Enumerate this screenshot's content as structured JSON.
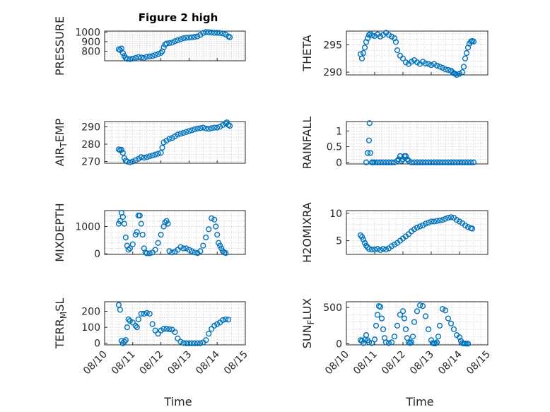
{
  "figure": {
    "title": "Figure 2 high",
    "marker_color": "#0072BD",
    "time_ticks": [
      "08/10",
      "08/11",
      "08/12",
      "08/13",
      "08/14",
      "08/15"
    ]
  },
  "chart_data": [
    {
      "type": "scatter",
      "ylabel": "PRESSURE",
      "xlim": [
        10.0,
        15.0
      ],
      "ylim": [
        700,
        1010
      ],
      "yticks": [
        800,
        900,
        1000
      ],
      "grid": true,
      "x": [
        10.5,
        10.55,
        10.6,
        10.65,
        10.7,
        10.75,
        10.8,
        10.9,
        11.0,
        11.1,
        11.2,
        11.3,
        11.4,
        11.5,
        11.6,
        11.7,
        11.8,
        11.9,
        12.0,
        12.05,
        12.1,
        12.15,
        12.2,
        12.3,
        12.4,
        12.5,
        12.6,
        12.7,
        12.8,
        12.9,
        13.0,
        13.1,
        13.2,
        13.3,
        13.4,
        13.5,
        13.6,
        13.7,
        13.8,
        13.9,
        14.0,
        14.1,
        14.2,
        14.3,
        14.4,
        14.45
      ],
      "y": [
        820,
        812,
        828,
        780,
        750,
        730,
        720,
        718,
        722,
        730,
        738,
        735,
        730,
        742,
        745,
        750,
        760,
        770,
        782,
        800,
        840,
        870,
        880,
        885,
        890,
        905,
        915,
        925,
        935,
        940,
        942,
        945,
        950,
        955,
        970,
        990,
        1000,
        998,
        995,
        992,
        993,
        990,
        985,
        975,
        955,
        945
      ]
    },
    {
      "type": "scatter",
      "ylabel": "THETA",
      "xlim": [
        10.0,
        15.0
      ],
      "ylim": [
        289.5,
        297.5
      ],
      "yticks": [
        290,
        295
      ],
      "grid": true,
      "x": [
        10.5,
        10.55,
        10.6,
        10.65,
        10.7,
        10.75,
        10.8,
        10.85,
        10.9,
        11.0,
        11.1,
        11.2,
        11.3,
        11.4,
        11.5,
        11.6,
        11.7,
        11.75,
        11.8,
        11.9,
        12.0,
        12.1,
        12.2,
        12.3,
        12.4,
        12.5,
        12.6,
        12.7,
        12.8,
        12.9,
        13.0,
        13.1,
        13.2,
        13.3,
        13.4,
        13.5,
        13.6,
        13.7,
        13.75,
        13.8,
        13.85,
        13.9,
        14.0,
        14.1,
        14.15,
        14.2,
        14.25,
        14.3,
        14.35,
        14.4,
        14.45,
        14.5
      ],
      "y": [
        293.3,
        292.5,
        293.5,
        294.5,
        295.5,
        296.2,
        296.8,
        297.0,
        296.7,
        296.6,
        296.9,
        296.5,
        296.8,
        297.2,
        296.8,
        296.5,
        296.2,
        295.5,
        294.0,
        293.0,
        292.5,
        291.8,
        291.5,
        291.9,
        292.2,
        291.8,
        291.5,
        291.9,
        291.6,
        291.5,
        291.3,
        291.5,
        291.2,
        291.0,
        290.8,
        290.5,
        290.4,
        290.3,
        290.0,
        289.8,
        289.7,
        289.5,
        289.7,
        290.0,
        291.0,
        292.5,
        293.5,
        294.5,
        295.2,
        295.6,
        295.7,
        295.6
      ]
    },
    {
      "type": "scatter",
      "ylabel": "AIR_TEMP",
      "xlim": [
        10.0,
        15.0
      ],
      "ylim": [
        269,
        293
      ],
      "yticks": [
        270,
        280,
        290
      ],
      "grid": true,
      "x": [
        10.5,
        10.55,
        10.6,
        10.65,
        10.7,
        10.75,
        10.8,
        10.9,
        11.0,
        11.1,
        11.2,
        11.3,
        11.4,
        11.5,
        11.6,
        11.7,
        11.8,
        11.9,
        12.0,
        12.05,
        12.1,
        12.2,
        12.3,
        12.4,
        12.5,
        12.6,
        12.7,
        12.8,
        12.9,
        13.0,
        13.1,
        13.2,
        13.3,
        13.4,
        13.5,
        13.6,
        13.7,
        13.8,
        13.9,
        14.0,
        14.1,
        14.2,
        14.3,
        14.35,
        14.4,
        14.45
      ],
      "y": [
        277,
        276.5,
        276.8,
        275,
        272,
        270.5,
        270,
        269.5,
        270,
        270.8,
        271.5,
        272.5,
        272.2,
        272.5,
        273,
        273.5,
        274,
        274.5,
        275,
        278,
        281,
        282,
        283,
        283.5,
        284.5,
        285.5,
        286,
        286.5,
        287,
        287.5,
        288,
        288.5,
        289,
        289.2,
        289.5,
        289,
        288.8,
        289.2,
        289.5,
        289.5,
        290,
        291,
        292,
        292.5,
        291,
        290.5
      ]
    },
    {
      "type": "scatter",
      "ylabel": "RAINFALL",
      "xlim": [
        10.0,
        15.0
      ],
      "ylim": [
        -0.05,
        1.3
      ],
      "yticks": [
        0,
        0.5,
        1
      ],
      "grid": true,
      "x": [
        10.7,
        10.75,
        10.8,
        10.82,
        10.85,
        10.9,
        10.95,
        11.0,
        11.1,
        11.2,
        11.3,
        11.4,
        11.5,
        11.6,
        11.7,
        11.8,
        11.85,
        11.9,
        11.95,
        12.0,
        12.05,
        12.1,
        12.15,
        12.2,
        12.3,
        12.4,
        12.5,
        12.6,
        12.7,
        12.8,
        12.9,
        13.0,
        13.1,
        13.2,
        13.3,
        13.4,
        13.5,
        13.6,
        13.7,
        13.8,
        13.9,
        14.0,
        14.1,
        14.2,
        14.3,
        14.4,
        14.5
      ],
      "y": [
        0,
        0.3,
        0.7,
        1.25,
        0.3,
        0,
        0,
        0,
        0,
        0,
        0,
        0,
        0,
        0,
        0,
        0.05,
        0.1,
        0.2,
        0.05,
        0.1,
        0.2,
        0.2,
        0.1,
        0.05,
        0,
        0,
        0,
        0,
        0,
        0,
        0,
        0,
        0,
        0,
        0,
        0,
        0,
        0,
        0,
        0,
        0,
        0,
        0,
        0,
        0,
        0,
        0
      ]
    },
    {
      "type": "scatter",
      "ylabel": "MIXDEPTH",
      "xlim": [
        10.0,
        15.0
      ],
      "ylim": [
        -20,
        1580
      ],
      "yticks": [
        0,
        1000
      ],
      "grid": true,
      "x": [
        10.5,
        10.55,
        10.6,
        10.65,
        10.7,
        10.75,
        10.8,
        10.85,
        10.9,
        11.0,
        11.1,
        11.15,
        11.2,
        11.25,
        11.3,
        11.35,
        11.4,
        11.45,
        11.5,
        11.6,
        11.7,
        11.8,
        11.9,
        12.0,
        12.1,
        12.15,
        12.2,
        12.25,
        12.3,
        12.4,
        12.5,
        12.6,
        12.7,
        12.8,
        12.9,
        13.0,
        13.1,
        13.2,
        13.3,
        13.4,
        13.5,
        13.6,
        13.7,
        13.8,
        13.9,
        13.95,
        14.0,
        14.05,
        14.1,
        14.15,
        14.2,
        14.25,
        14.3
      ],
      "y": [
        1100,
        1200,
        1500,
        1350,
        1100,
        600,
        300,
        150,
        200,
        350,
        700,
        800,
        1400,
        1400,
        1100,
        700,
        200,
        50,
        20,
        20,
        50,
        150,
        400,
        700,
        1000,
        1150,
        1200,
        1100,
        100,
        50,
        80,
        150,
        250,
        200,
        200,
        150,
        100,
        50,
        30,
        100,
        300,
        600,
        900,
        1300,
        1250,
        1000,
        700,
        400,
        300,
        200,
        100,
        50,
        30
      ]
    },
    {
      "type": "scatter",
      "ylabel": "H2OMIXRA",
      "xlim": [
        10.0,
        15.0
      ],
      "ylim": [
        2.5,
        10.5
      ],
      "yticks": [
        5,
        10
      ],
      "grid": true,
      "x": [
        10.5,
        10.55,
        10.6,
        10.65,
        10.7,
        10.75,
        10.8,
        10.9,
        11.0,
        11.1,
        11.2,
        11.3,
        11.4,
        11.5,
        11.6,
        11.7,
        11.8,
        11.9,
        12.0,
        12.1,
        12.2,
        12.3,
        12.4,
        12.5,
        12.6,
        12.7,
        12.8,
        12.9,
        13.0,
        13.1,
        13.2,
        13.3,
        13.4,
        13.5,
        13.6,
        13.7,
        13.8,
        13.9,
        14.0,
        14.1,
        14.2,
        14.3,
        14.4,
        14.45
      ],
      "y": [
        6.0,
        5.7,
        5.2,
        4.6,
        4.1,
        3.8,
        3.5,
        3.4,
        3.4,
        3.5,
        3.3,
        3.5,
        3.4,
        3.6,
        4.0,
        4.3,
        4.6,
        5.0,
        5.4,
        5.8,
        6.2,
        6.7,
        7.1,
        7.4,
        7.6,
        7.8,
        8.1,
        8.3,
        8.5,
        8.5,
        8.6,
        8.7,
        8.8,
        9.0,
        9.2,
        9.3,
        9.2,
        8.8,
        8.5,
        8.2,
        7.8,
        7.5,
        7.3,
        7.2
      ]
    },
    {
      "type": "scatter",
      "ylabel": "TERR_MSL",
      "xlim": [
        10.0,
        15.0
      ],
      "ylim": [
        -10,
        260
      ],
      "yticks": [
        0,
        100,
        200
      ],
      "grid": true,
      "x": [
        10.5,
        10.55,
        10.6,
        10.65,
        10.7,
        10.75,
        10.8,
        10.85,
        10.9,
        11.0,
        11.1,
        11.15,
        11.2,
        11.3,
        11.4,
        11.5,
        11.6,
        11.7,
        11.8,
        11.9,
        12.0,
        12.1,
        12.2,
        12.3,
        12.4,
        12.5,
        12.6,
        12.7,
        12.8,
        12.9,
        13.0,
        13.1,
        13.2,
        13.3,
        13.4,
        13.5,
        13.6,
        13.7,
        13.8,
        13.9,
        14.0,
        14.1,
        14.2,
        14.3,
        14.4
      ],
      "y": [
        240,
        210,
        15,
        0,
        10,
        20,
        100,
        150,
        140,
        130,
        110,
        100,
        150,
        185,
        185,
        190,
        185,
        120,
        80,
        60,
        80,
        90,
        90,
        88,
        85,
        70,
        30,
        10,
        2,
        0,
        0,
        0,
        0,
        0,
        0,
        5,
        20,
        60,
        90,
        110,
        120,
        130,
        145,
        150,
        148
      ]
    },
    {
      "type": "scatter",
      "ylabel": "SUN_FLUX",
      "xlim": [
        10.0,
        15.0
      ],
      "ylim": [
        -15,
        580
      ],
      "yticks": [
        0,
        500
      ],
      "grid": true,
      "x": [
        10.5,
        10.55,
        10.6,
        10.65,
        10.7,
        10.75,
        10.8,
        10.9,
        11.0,
        11.05,
        11.1,
        11.15,
        11.2,
        11.25,
        11.3,
        11.35,
        11.4,
        11.5,
        11.6,
        11.7,
        11.8,
        11.9,
        12.0,
        12.05,
        12.1,
        12.15,
        12.2,
        12.25,
        12.3,
        12.35,
        12.4,
        12.5,
        12.6,
        12.7,
        12.8,
        12.9,
        13.0,
        13.05,
        13.1,
        13.15,
        13.2,
        13.25,
        13.3,
        13.4,
        13.5,
        13.6,
        13.7,
        13.8,
        13.9,
        14.0,
        14.05,
        14.1,
        14.15,
        14.2,
        14.25,
        14.3
      ],
      "y": [
        50,
        40,
        10,
        60,
        120,
        50,
        20,
        10,
        60,
        250,
        400,
        520,
        510,
        350,
        200,
        80,
        20,
        10,
        20,
        100,
        250,
        400,
        450,
        350,
        200,
        80,
        20,
        10,
        20,
        100,
        300,
        450,
        530,
        520,
        380,
        200,
        50,
        10,
        5,
        5,
        20,
        100,
        250,
        480,
        460,
        350,
        280,
        200,
        120,
        90,
        40,
        10,
        5,
        3,
        2,
        1
      ]
    }
  ],
  "panel_layout": [
    {
      "ylabel_base": "PRESSURE",
      "ylabel_sub": "",
      "ylabel_tail": ""
    },
    {
      "ylabel_base": "THETA",
      "ylabel_sub": "",
      "ylabel_tail": ""
    },
    {
      "ylabel_base": "AIR",
      "ylabel_sub": "T",
      "ylabel_tail": "EMP"
    },
    {
      "ylabel_base": "RAINFALL",
      "ylabel_sub": "",
      "ylabel_tail": ""
    },
    {
      "ylabel_base": "MIXDEPTH",
      "ylabel_sub": "",
      "ylabel_tail": ""
    },
    {
      "ylabel_base": "H2OMIXRA",
      "ylabel_sub": "",
      "ylabel_tail": ""
    },
    {
      "ylabel_base": "TERR",
      "ylabel_sub": "M",
      "ylabel_tail": "SL"
    },
    {
      "ylabel_base": "SUN",
      "ylabel_sub": "F",
      "ylabel_tail": "LUX"
    }
  ],
  "xlabels": [
    "Time",
    "Time"
  ]
}
